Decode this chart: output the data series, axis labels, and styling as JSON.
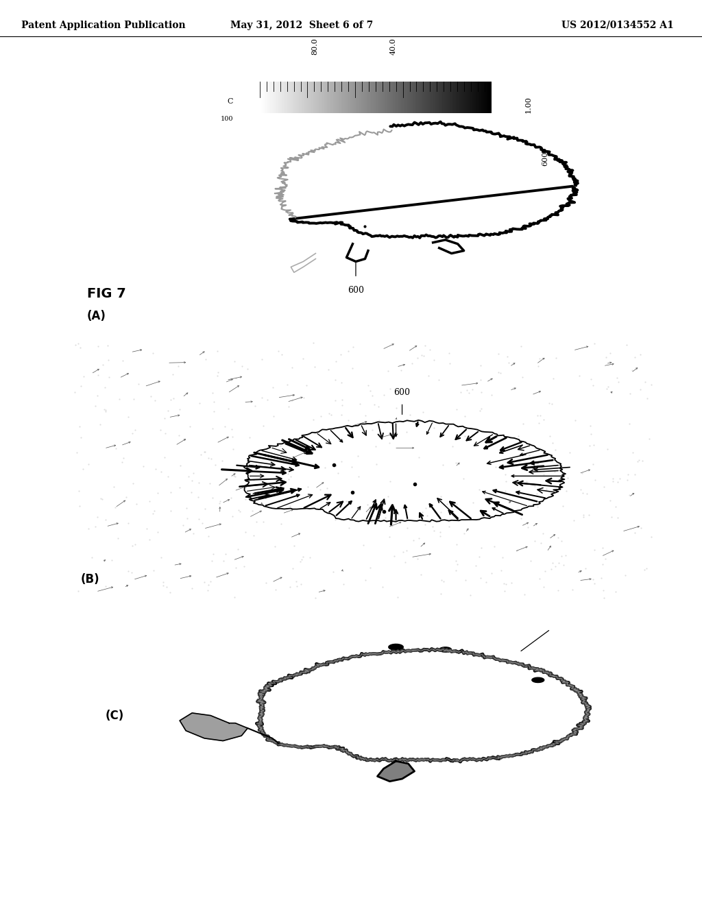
{
  "header_left": "Patent Application Publication",
  "header_mid": "May 31, 2012  Sheet 6 of 7",
  "header_right": "US 2012/0134552 A1",
  "fig_label": "FIG 7",
  "panel_A_label": "(A)",
  "panel_B_label": "(B)",
  "panel_C_label": "(C)",
  "ref_600": "600",
  "background_color": "#ffffff",
  "header_fontsize": 10,
  "label_fontsize": 12,
  "fig_label_fontsize": 14
}
